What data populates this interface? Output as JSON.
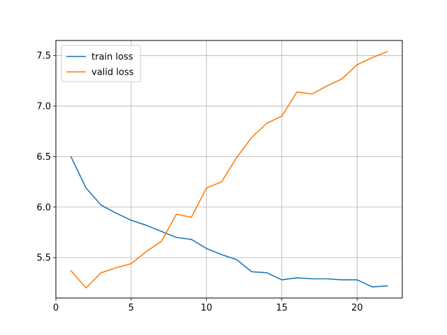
{
  "chart_data": {
    "type": "line",
    "title": "",
    "xlabel": "",
    "ylabel": "",
    "xlim": [
      0,
      23
    ],
    "ylim": [
      5.1,
      7.65
    ],
    "x_ticks": [
      0,
      5,
      10,
      15,
      20
    ],
    "y_ticks": [
      5.5,
      6.0,
      6.5,
      7.0,
      7.5
    ],
    "x_tick_labels": [
      "0",
      "5",
      "10",
      "15",
      "20"
    ],
    "y_tick_labels": [
      "5.5",
      "6.0",
      "6.5",
      "7.0",
      "7.5"
    ],
    "grid": true,
    "legend_position": "top-left",
    "x": [
      1,
      2,
      3,
      4,
      5,
      6,
      7,
      8,
      9,
      10,
      11,
      12,
      13,
      14,
      15,
      16,
      17,
      18,
      19,
      20,
      21,
      22
    ],
    "series": [
      {
        "name": "train loss",
        "color": "#1f77b4",
        "values": [
          6.5,
          6.19,
          6.02,
          5.94,
          5.87,
          5.82,
          5.76,
          5.7,
          5.68,
          5.59,
          5.53,
          5.48,
          5.36,
          5.35,
          5.28,
          5.3,
          5.29,
          5.29,
          5.28,
          5.28,
          5.21,
          5.22
        ]
      },
      {
        "name": "valid loss",
        "color": "#ff7f0e",
        "values": [
          5.37,
          5.2,
          5.35,
          5.4,
          5.44,
          5.56,
          5.66,
          5.93,
          5.9,
          6.19,
          6.25,
          6.49,
          6.69,
          6.83,
          6.9,
          7.14,
          7.12,
          7.2,
          7.27,
          7.41,
          7.48,
          7.54
        ]
      }
    ]
  }
}
